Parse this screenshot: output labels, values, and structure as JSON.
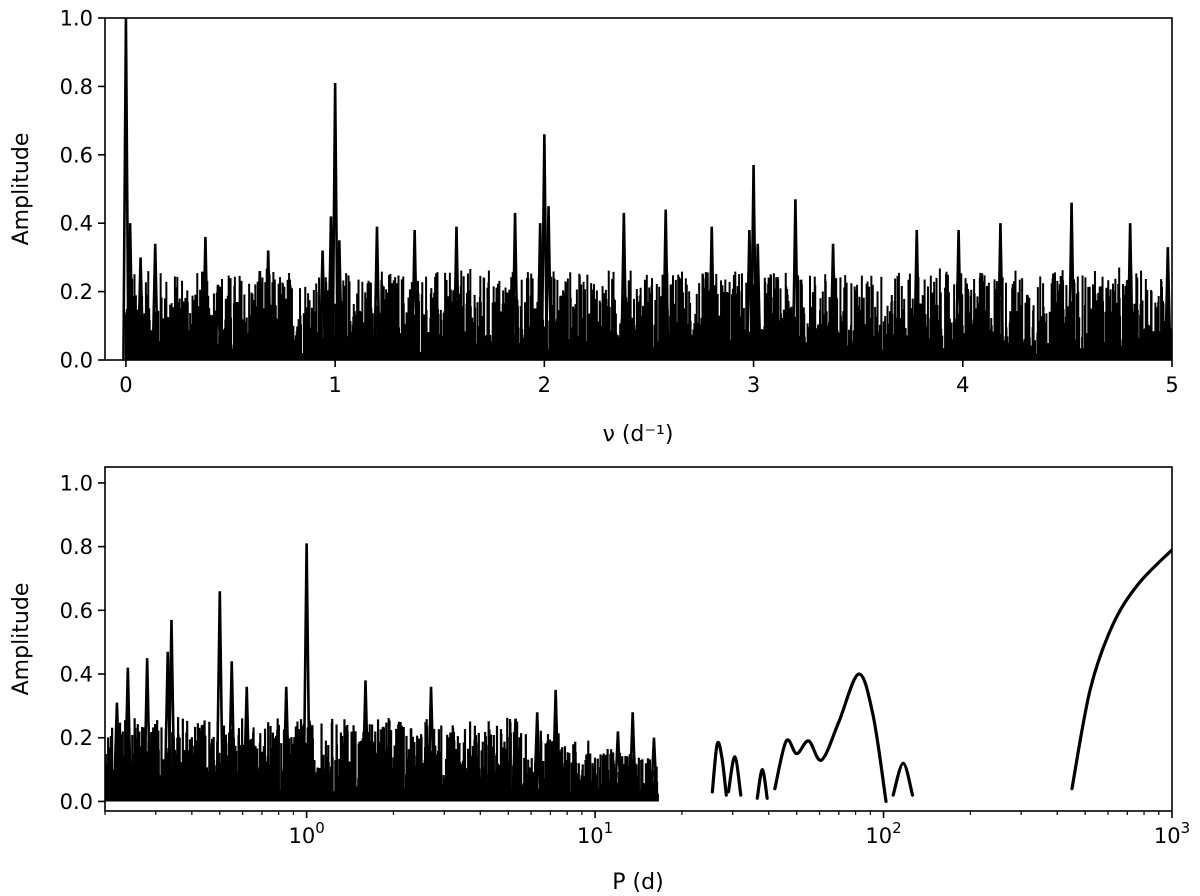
{
  "chart_data": [
    {
      "type": "line",
      "title": "",
      "xlabel": "ν (d⁻¹)",
      "ylabel": "Amplitude",
      "xlim": [
        -0.1,
        5.0
      ],
      "ylim": [
        0.0,
        1.0
      ],
      "x_scale": "linear",
      "xticks": [
        0,
        1,
        2,
        3,
        4,
        5
      ],
      "xtick_labels": [
        "0",
        "1",
        "2",
        "3",
        "4",
        "5"
      ],
      "yticks": [
        0.0,
        0.2,
        0.4,
        0.6,
        0.8,
        1.0
      ],
      "ytick_labels": [
        "0.0",
        "0.2",
        "0.4",
        "0.6",
        "0.8",
        "1.0"
      ],
      "grid": false,
      "color": "#000000",
      "series": [
        {
          "peaks": [
            {
              "x": 0.0,
              "y": 1.0
            },
            {
              "x": 0.02,
              "y": 0.4
            },
            {
              "x": 0.07,
              "y": 0.3
            },
            {
              "x": 0.14,
              "y": 0.34
            },
            {
              "x": 0.38,
              "y": 0.36
            },
            {
              "x": 0.44,
              "y": 0.22
            },
            {
              "x": 0.64,
              "y": 0.26
            },
            {
              "x": 0.68,
              "y": 0.32
            },
            {
              "x": 0.94,
              "y": 0.32
            },
            {
              "x": 0.98,
              "y": 0.42
            },
            {
              "x": 1.0,
              "y": 0.81
            },
            {
              "x": 1.02,
              "y": 0.35
            },
            {
              "x": 1.2,
              "y": 0.39
            },
            {
              "x": 1.38,
              "y": 0.38
            },
            {
              "x": 1.58,
              "y": 0.39
            },
            {
              "x": 1.86,
              "y": 0.43
            },
            {
              "x": 1.98,
              "y": 0.4
            },
            {
              "x": 2.0,
              "y": 0.66
            },
            {
              "x": 2.02,
              "y": 0.45
            },
            {
              "x": 2.38,
              "y": 0.43
            },
            {
              "x": 2.58,
              "y": 0.44
            },
            {
              "x": 2.8,
              "y": 0.39
            },
            {
              "x": 2.98,
              "y": 0.38
            },
            {
              "x": 3.0,
              "y": 0.57
            },
            {
              "x": 3.02,
              "y": 0.34
            },
            {
              "x": 3.2,
              "y": 0.47
            },
            {
              "x": 3.38,
              "y": 0.34
            },
            {
              "x": 3.78,
              "y": 0.38
            },
            {
              "x": 3.98,
              "y": 0.38
            },
            {
              "x": 4.18,
              "y": 0.4
            },
            {
              "x": 4.52,
              "y": 0.46
            },
            {
              "x": 4.8,
              "y": 0.4
            },
            {
              "x": 4.98,
              "y": 0.33
            }
          ],
          "noise_level": 0.12
        }
      ]
    },
    {
      "type": "line",
      "title": "",
      "xlabel": "P (d)",
      "ylabel": "Amplitude",
      "xlim": [
        0.2,
        1000
      ],
      "ylim": [
        -0.03,
        1.05
      ],
      "x_scale": "log",
      "xticks": [
        1,
        10,
        100,
        1000
      ],
      "xtick_labels": [
        "10",
        "10",
        "10",
        "10"
      ],
      "xtick_exponents": [
        "0",
        "1",
        "2",
        "3"
      ],
      "yticks": [
        0.0,
        0.2,
        0.4,
        0.6,
        0.8,
        1.0
      ],
      "ytick_labels": [
        "0.0",
        "0.2",
        "0.4",
        "0.6",
        "0.8",
        "1.0"
      ],
      "grid": false,
      "color": "#000000",
      "series": [
        {
          "peaks": [
            {
              "x": 0.22,
              "y": 0.31
            },
            {
              "x": 0.24,
              "y": 0.42
            },
            {
              "x": 0.28,
              "y": 0.45
            },
            {
              "x": 0.33,
              "y": 0.47
            },
            {
              "x": 0.34,
              "y": 0.57
            },
            {
              "x": 0.5,
              "y": 0.66
            },
            {
              "x": 0.55,
              "y": 0.44
            },
            {
              "x": 0.62,
              "y": 0.36
            },
            {
              "x": 0.85,
              "y": 0.36
            },
            {
              "x": 1.0,
              "y": 0.81
            },
            {
              "x": 1.6,
              "y": 0.38
            },
            {
              "x": 2.7,
              "y": 0.36
            },
            {
              "x": 5.3,
              "y": 0.26
            },
            {
              "x": 6.3,
              "y": 0.28
            },
            {
              "x": 7.3,
              "y": 0.35
            },
            {
              "x": 12.0,
              "y": 0.22
            },
            {
              "x": 13.5,
              "y": 0.28
            },
            {
              "x": 16.0,
              "y": 0.2
            }
          ],
          "segments": [
            {
              "x": [
                25.5,
                26.5,
                27.5,
                28.5
              ],
              "y": [
                0.03,
                0.18,
                0.14,
                0.02
              ]
            },
            {
              "x": [
                29.0,
                30.5,
                32.0
              ],
              "y": [
                0.03,
                0.14,
                0.02
              ]
            },
            {
              "x": [
                36.5,
                38.0,
                39.5
              ],
              "y": [
                0.01,
                0.1,
                0.01
              ]
            },
            {
              "x": [
                42.0,
                46.0,
                50.0,
                55.0,
                61.0,
                70.0,
                82.0,
                92.0,
                102.0
              ],
              "y": [
                0.04,
                0.19,
                0.15,
                0.19,
                0.13,
                0.25,
                0.4,
                0.27,
                0.0
              ]
            },
            {
              "x": [
                108.0,
                117.0,
                126.0
              ],
              "y": [
                0.02,
                0.12,
                0.02
              ]
            },
            {
              "x": [
                450.0,
                520.0,
                620.0,
                760.0,
                1000.0
              ],
              "y": [
                0.04,
                0.35,
                0.55,
                0.68,
                0.79
              ]
            }
          ]
        }
      ]
    }
  ]
}
